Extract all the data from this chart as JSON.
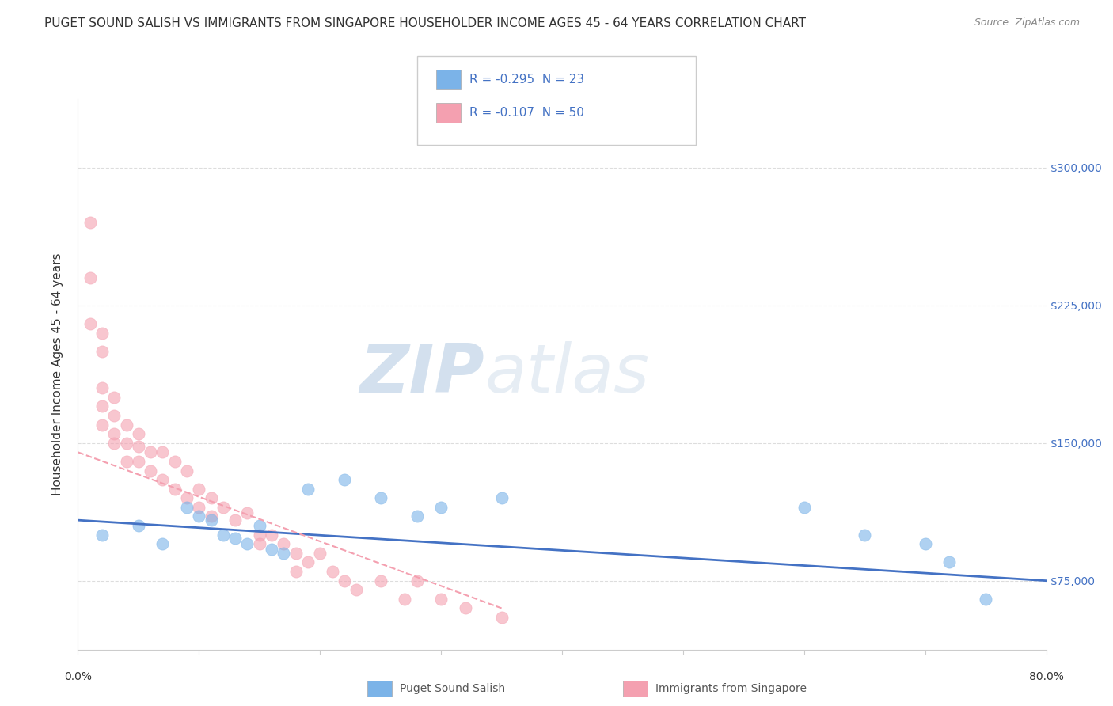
{
  "title": "PUGET SOUND SALISH VS IMMIGRANTS FROM SINGAPORE HOUSEHOLDER INCOME AGES 45 - 64 YEARS CORRELATION CHART",
  "source": "Source: ZipAtlas.com",
  "ylabel": "Householder Income Ages 45 - 64 years",
  "xlim": [
    0.0,
    0.8
  ],
  "ylim": [
    37500,
    337500
  ],
  "yticks": [
    75000,
    150000,
    225000,
    300000
  ],
  "ytick_labels": [
    "$75,000",
    "$150,000",
    "$225,000",
    "$300,000"
  ],
  "xticks": [
    0.0,
    0.1,
    0.2,
    0.3,
    0.4,
    0.5,
    0.6,
    0.7,
    0.8
  ],
  "legend_entries": [
    {
      "label": "R = -0.295  N = 23",
      "color": "#aec6f0"
    },
    {
      "label": "R = -0.107  N = 50",
      "color": "#f4a7b5"
    }
  ],
  "legend_footer": [
    "Puget Sound Salish",
    "Immigrants from Singapore"
  ],
  "blue_scatter_x": [
    0.02,
    0.05,
    0.07,
    0.09,
    0.1,
    0.11,
    0.12,
    0.13,
    0.14,
    0.15,
    0.16,
    0.17,
    0.19,
    0.22,
    0.25,
    0.28,
    0.3,
    0.35,
    0.6,
    0.65,
    0.7,
    0.72,
    0.75
  ],
  "blue_scatter_y": [
    100000,
    105000,
    95000,
    115000,
    110000,
    108000,
    100000,
    98000,
    95000,
    105000,
    92000,
    90000,
    125000,
    130000,
    120000,
    110000,
    115000,
    120000,
    115000,
    100000,
    95000,
    85000,
    65000
  ],
  "pink_scatter_x": [
    0.01,
    0.01,
    0.01,
    0.02,
    0.02,
    0.02,
    0.02,
    0.02,
    0.03,
    0.03,
    0.03,
    0.03,
    0.04,
    0.04,
    0.04,
    0.05,
    0.05,
    0.05,
    0.06,
    0.06,
    0.07,
    0.07,
    0.08,
    0.08,
    0.09,
    0.09,
    0.1,
    0.1,
    0.11,
    0.11,
    0.12,
    0.13,
    0.14,
    0.15,
    0.15,
    0.16,
    0.17,
    0.18,
    0.18,
    0.19,
    0.2,
    0.21,
    0.22,
    0.23,
    0.25,
    0.27,
    0.28,
    0.3,
    0.32,
    0.35
  ],
  "pink_scatter_y": [
    270000,
    240000,
    215000,
    200000,
    180000,
    170000,
    160000,
    210000,
    175000,
    165000,
    155000,
    150000,
    160000,
    150000,
    140000,
    155000,
    148000,
    140000,
    145000,
    135000,
    145000,
    130000,
    140000,
    125000,
    135000,
    120000,
    125000,
    115000,
    120000,
    110000,
    115000,
    108000,
    112000,
    100000,
    95000,
    100000,
    95000,
    90000,
    80000,
    85000,
    90000,
    80000,
    75000,
    70000,
    75000,
    65000,
    75000,
    65000,
    60000,
    55000
  ],
  "blue_line_x": [
    0.0,
    0.8
  ],
  "blue_line_y": [
    108000,
    75000
  ],
  "pink_line_x": [
    0.0,
    0.35
  ],
  "pink_line_y": [
    145000,
    60000
  ],
  "watermark_zip": "ZIP",
  "watermark_atlas": "atlas",
  "background_color": "#ffffff",
  "grid_color": "#dddddd",
  "scatter_size": 120,
  "blue_color": "#7bb3e8",
  "pink_color": "#f4a0b0",
  "blue_line_color": "#4472c4",
  "pink_line_color": "#f4a0b0",
  "title_fontsize": 11,
  "axis_label_fontsize": 11,
  "tick_fontsize": 10,
  "source_fontsize": 9
}
